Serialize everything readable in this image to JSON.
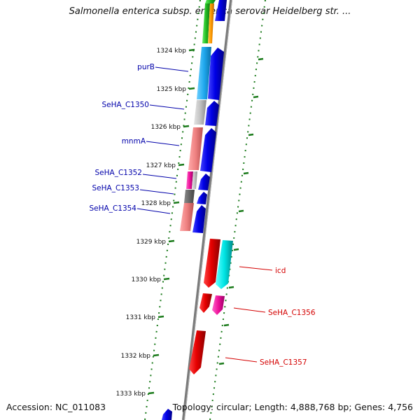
{
  "header": {
    "title": "Salmonella enterica subsp. enterica serovar Heidelberg str. ..."
  },
  "footer": {
    "accession": "Accession: NC_011083",
    "topology": "Topology: circular; Length: 4,888,768 bp; Genes: 4,756"
  },
  "colors": {
    "left_label": "#0000aa",
    "right_label": "#d40000",
    "tick": "#1a7a1a",
    "backbone": "#888888"
  },
  "ticks": [
    "1324 kbp",
    "1325 kbp",
    "1326 kbp",
    "1327 kbp",
    "1328 kbp",
    "1329 kbp",
    "1330 kbp",
    "1331 kbp",
    "1332 kbp",
    "1333 kbp"
  ],
  "genes": [
    {
      "label": "purB",
      "side": "left",
      "color": "#0000aa"
    },
    {
      "label": "SeHA_C1350",
      "side": "left",
      "color": "#0000aa"
    },
    {
      "label": "mnmA",
      "side": "left",
      "color": "#0000aa"
    },
    {
      "label": "SeHA_C1352",
      "side": "left",
      "color": "#0000aa"
    },
    {
      "label": "SeHA_C1353",
      "side": "left",
      "color": "#0000aa"
    },
    {
      "label": "SeHA_C1354",
      "side": "left",
      "color": "#0000aa"
    },
    {
      "label": "icd",
      "side": "right",
      "color": "#d40000"
    },
    {
      "label": "SeHA_C1356",
      "side": "right",
      "color": "#d40000"
    },
    {
      "label": "SeHA_C1357",
      "side": "right",
      "color": "#d40000"
    }
  ]
}
